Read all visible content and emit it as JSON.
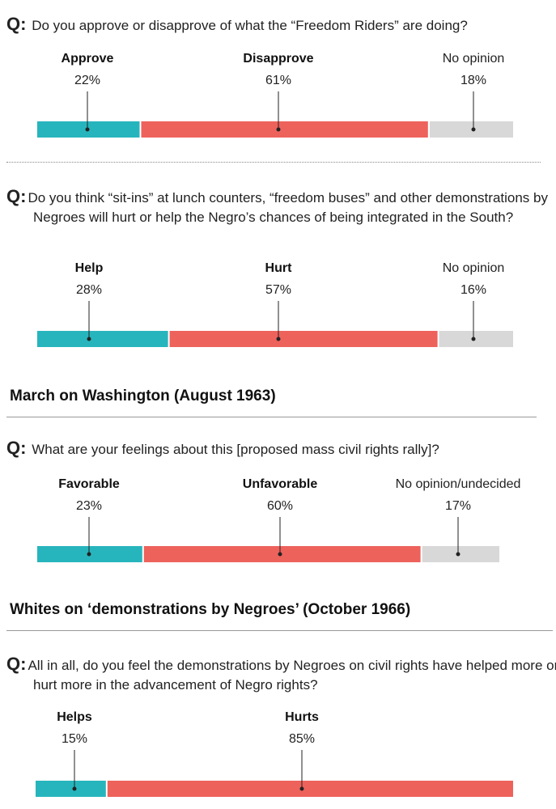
{
  "colors": {
    "teal": "#27b5bd",
    "red": "#ee625c",
    "gray": "#d8d8d8",
    "line": "#222222"
  },
  "headings": {
    "march": "March on Washington (August 1963)",
    "whites": "Whites on ‘demonstrations by Negroes’ (October 1966)"
  },
  "chart_data": [
    {
      "type": "bar",
      "question_mark": "Q:",
      "question": "Do you approve or disapprove of what the “Freedom Riders” are doing?",
      "categories": [
        "Approve",
        "Disapprove",
        "No opinion"
      ],
      "labels_pct": [
        "22%",
        "61%",
        "18%"
      ],
      "values": [
        22,
        61,
        18
      ]
    },
    {
      "type": "bar",
      "question_mark": "Q:",
      "question": "Do you think “sit-ins” at lunch counters, “freedom buses” and other demonstrations by Negroes will hurt or help the Negro’s chances of being integrated in the South?",
      "categories": [
        "Help",
        "Hurt",
        "No opinion"
      ],
      "labels_pct": [
        "28%",
        "57%",
        "16%"
      ],
      "values": [
        28,
        57,
        16
      ]
    },
    {
      "type": "bar",
      "question_mark": "Q:",
      "question": "What are your feelings about this [proposed mass civil rights rally]?",
      "categories": [
        "Favorable",
        "Unfavorable",
        "No opinion/undecided"
      ],
      "labels_pct": [
        "23%",
        "60%",
        "17%"
      ],
      "values": [
        23,
        60,
        17
      ]
    },
    {
      "type": "bar",
      "question_mark": "Q:",
      "question": "All in all, do you feel the demonstrations by Negroes on civil rights have helped more or hurt more in the advancement of Negro rights?",
      "categories": [
        "Helps",
        "Hurts"
      ],
      "labels_pct": [
        "15%",
        "85%"
      ],
      "values": [
        15,
        85
      ]
    }
  ]
}
